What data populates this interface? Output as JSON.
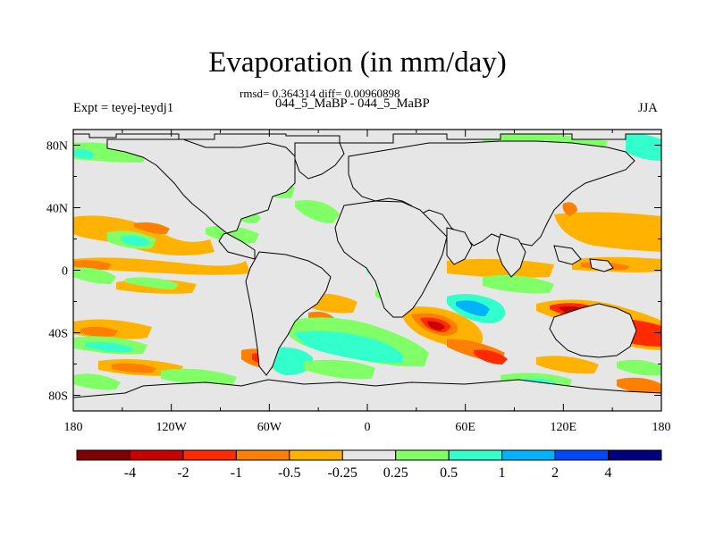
{
  "title": "Evaporation (in mm/day)",
  "stats": "rmsd= 0.364314 diff= 0.00960898",
  "case_label": "044_5_MaBP - 044_5_MaBP",
  "experiment": "Expt = teyej-teydj1",
  "season": "JJA",
  "map": {
    "type": "heatmap",
    "projection": "cylindrical equidistant",
    "lon_range": [
      -180,
      180
    ],
    "lat_range": [
      -90,
      90
    ],
    "x_ticks": [
      "180",
      "120W",
      "60W",
      "0",
      "60E",
      "120E",
      "180"
    ],
    "y_ticks": [
      "80N",
      "40N",
      "0",
      "40S",
      "80S"
    ],
    "background_color": "#e6e6e6",
    "coastline_color": "#000000"
  },
  "colorbar": {
    "labels": [
      "-4",
      "-2",
      "-1",
      "-0.5",
      "-0.25",
      "0.25",
      "0.5",
      "1",
      "2",
      "4"
    ],
    "colors": [
      "#7f0000",
      "#c80000",
      "#ff2a00",
      "#ff7f00",
      "#ffb300",
      "#e6e6e6",
      "#80ff66",
      "#33ffcc",
      "#00b3ff",
      "#0047ff",
      "#00007f"
    ]
  }
}
